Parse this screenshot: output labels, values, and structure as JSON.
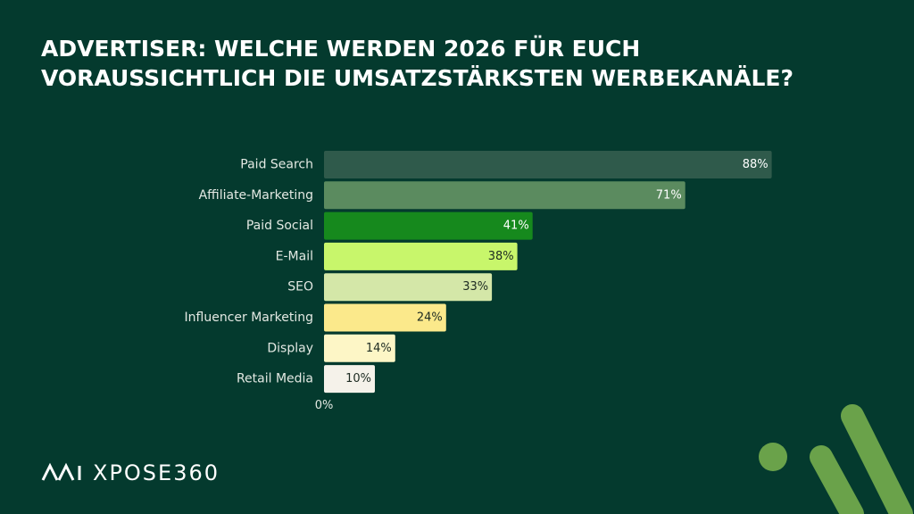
{
  "chart_data": {
    "type": "bar",
    "orientation": "horizontal",
    "title": "ADVERTISER: WELCHE WERDEN 2026 FÜR EUCH VORAUSSICHTLICH DIE UMSATZSTÄRKSTEN WERBEKANÄLE?",
    "categories": [
      "Paid Search",
      "Affiliate-Marketing",
      "Paid Social",
      "E-Mail",
      "SEO",
      "Influencer Marketing",
      "Display",
      "Retail Media"
    ],
    "values": [
      88,
      71,
      41,
      38,
      33,
      24,
      14,
      10
    ],
    "value_labels": [
      "88%",
      "71%",
      "41%",
      "38%",
      "33%",
      "24%",
      "14%",
      "10%"
    ],
    "colors": [
      "#2f5a4b",
      "#5b8b5f",
      "#16891d",
      "#c8f66b",
      "#d4e7a8",
      "#fbe98b",
      "#fdf6c6",
      "#f5f2ea"
    ],
    "xlim": [
      0,
      100
    ],
    "xticks": [
      {
        "value": 0,
        "label": "0%"
      }
    ],
    "brand": "XPOSE360"
  }
}
